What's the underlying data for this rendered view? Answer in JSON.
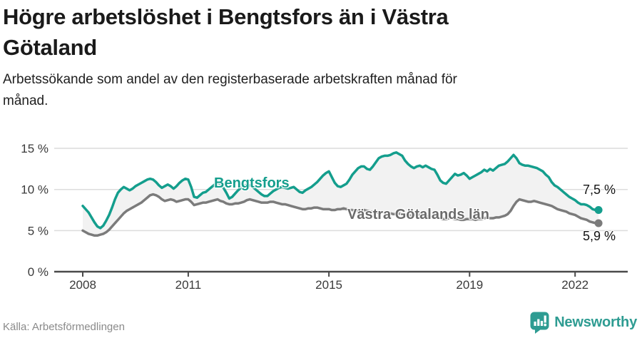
{
  "header": {
    "title": "Högre arbetslöshet i Bengtsfors än i Västra Götaland",
    "title_lines": [
      "Högre arbetslöshet i Bengtsfors än i Västra",
      "Götaland"
    ],
    "subtitle_lines": [
      "Arbetssökande som andel av den registerbaserade arbetskraften månad för",
      "månad."
    ]
  },
  "footer": {
    "source": "Källa: Arbetsförmedlingen",
    "brand": "Newsworthy"
  },
  "icons": {
    "logo": "newsworthy-speech-bubble-barchart-icon"
  },
  "colors": {
    "accent": "#149E8D",
    "gray_series": "#7B7B7B",
    "fill_between": "#F2F2F2",
    "gridline": "#DCDCDC",
    "axis": "#4A4A4A",
    "tick": "#3A3A3A",
    "logo": "#2E9C92"
  },
  "chart_data": {
    "type": "line",
    "title": "Högre arbetslöshet i Bengtsfors än i Västra Götaland",
    "subtitle": "Arbetssökande som andel av den registerbaserade arbetskraften månad för månad.",
    "xlabel": "",
    "ylabel": "",
    "x_start_year": 2008,
    "x_step_months": 1,
    "x_end_label_period": "sep 2022",
    "x_ticks": [
      2008,
      2011,
      2015,
      2019,
      2022
    ],
    "x_tick_labels": [
      "2008",
      "2011",
      "2015",
      "2019",
      "2022"
    ],
    "y_ticks": [
      0,
      5,
      10,
      15
    ],
    "y_tick_labels": [
      "0 %",
      "5 %",
      "10 %",
      "15 %"
    ],
    "ylim": [
      0,
      15.8
    ],
    "grid": "horizontal",
    "legend": "inline-labels",
    "fill_between_series": true,
    "series": [
      {
        "name": "Bengtsfors",
        "color": "#149E8D",
        "end_label": "7,5 %",
        "end_value": 7.5,
        "values": [
          8.0,
          7.6,
          7.2,
          6.6,
          6.0,
          5.5,
          5.3,
          5.6,
          6.2,
          6.9,
          7.8,
          8.8,
          9.6,
          10.0,
          10.3,
          10.1,
          9.9,
          10.1,
          10.4,
          10.6,
          10.8,
          11.0,
          11.2,
          11.3,
          11.2,
          10.9,
          10.5,
          10.2,
          10.4,
          10.6,
          10.4,
          10.1,
          10.4,
          10.8,
          11.1,
          11.3,
          11.2,
          10.3,
          9.1,
          9.0,
          9.3,
          9.6,
          9.7,
          10.0,
          10.3,
          10.6,
          10.8,
          10.7,
          10.2,
          9.6,
          8.9,
          9.1,
          9.5,
          9.9,
          10.2,
          10.4,
          10.6,
          10.5,
          10.3,
          10.0,
          9.7,
          9.4,
          9.2,
          9.2,
          9.5,
          9.8,
          10.0,
          10.2,
          10.3,
          10.2,
          10.1,
          10.2,
          10.3,
          10.0,
          9.7,
          9.6,
          9.9,
          10.1,
          10.3,
          10.6,
          10.9,
          11.3,
          11.7,
          12.0,
          12.2,
          11.5,
          10.8,
          10.4,
          10.3,
          10.5,
          10.7,
          11.2,
          11.8,
          12.2,
          12.6,
          12.8,
          12.8,
          12.5,
          12.4,
          12.8,
          13.3,
          13.8,
          14.0,
          14.1,
          14.1,
          14.2,
          14.4,
          14.5,
          14.3,
          14.1,
          13.5,
          13.1,
          12.8,
          12.6,
          12.8,
          12.9,
          12.7,
          12.9,
          12.7,
          12.5,
          12.4,
          11.8,
          11.1,
          10.8,
          10.7,
          11.1,
          11.5,
          11.9,
          11.7,
          11.8,
          12.0,
          11.7,
          11.3,
          11.5,
          11.7,
          11.9,
          12.1,
          12.4,
          12.2,
          12.5,
          12.3,
          12.6,
          12.9,
          13.0,
          13.1,
          13.4,
          13.8,
          14.2,
          13.8,
          13.2,
          13.0,
          12.9,
          12.9,
          12.8,
          12.7,
          12.6,
          12.4,
          12.2,
          11.8,
          11.5,
          10.9,
          10.5,
          10.3,
          10.0,
          9.7,
          9.4,
          9.1,
          8.9,
          8.7,
          8.4,
          8.2,
          8.2,
          8.1,
          7.9,
          7.6,
          7.5,
          7.5
        ]
      },
      {
        "name": "Västra Götalands län",
        "color": "#7B7B7B",
        "end_label": "5,9 %",
        "end_value": 5.9,
        "values": [
          5.0,
          4.8,
          4.6,
          4.5,
          4.4,
          4.4,
          4.5,
          4.6,
          4.8,
          5.1,
          5.5,
          5.9,
          6.3,
          6.7,
          7.1,
          7.4,
          7.6,
          7.8,
          8.0,
          8.2,
          8.4,
          8.7,
          9.0,
          9.3,
          9.4,
          9.3,
          9.1,
          8.8,
          8.6,
          8.7,
          8.8,
          8.7,
          8.5,
          8.6,
          8.7,
          8.8,
          8.8,
          8.5,
          8.1,
          8.2,
          8.3,
          8.4,
          8.4,
          8.5,
          8.6,
          8.7,
          8.8,
          8.6,
          8.5,
          8.3,
          8.2,
          8.2,
          8.3,
          8.3,
          8.4,
          8.5,
          8.7,
          8.8,
          8.7,
          8.6,
          8.5,
          8.4,
          8.4,
          8.4,
          8.5,
          8.5,
          8.4,
          8.3,
          8.2,
          8.2,
          8.1,
          8.0,
          7.9,
          7.8,
          7.7,
          7.6,
          7.6,
          7.7,
          7.7,
          7.8,
          7.8,
          7.7,
          7.6,
          7.6,
          7.6,
          7.5,
          7.5,
          7.6,
          7.6,
          7.7,
          7.6,
          7.5,
          7.5,
          7.4,
          7.4,
          7.5,
          7.5,
          7.4,
          7.3,
          7.3,
          7.2,
          7.2,
          7.3,
          7.2,
          7.1,
          7.1,
          7.0,
          7.0,
          7.1,
          7.0,
          6.9,
          6.9,
          6.8,
          6.9,
          7.0,
          6.9,
          6.8,
          6.8,
          6.7,
          6.7,
          6.7,
          6.6,
          6.5,
          6.4,
          6.4,
          6.5,
          6.5,
          6.4,
          6.4,
          6.3,
          6.3,
          6.4,
          6.4,
          6.4,
          6.3,
          6.4,
          6.4,
          6.5,
          6.6,
          6.5,
          6.5,
          6.6,
          6.6,
          6.7,
          6.8,
          7.0,
          7.4,
          8.0,
          8.5,
          8.8,
          8.7,
          8.6,
          8.5,
          8.5,
          8.6,
          8.5,
          8.4,
          8.3,
          8.2,
          8.1,
          8.0,
          7.8,
          7.6,
          7.5,
          7.4,
          7.3,
          7.1,
          7.0,
          6.9,
          6.7,
          6.5,
          6.4,
          6.3,
          6.1,
          6.0,
          5.9,
          5.9
        ]
      }
    ]
  }
}
